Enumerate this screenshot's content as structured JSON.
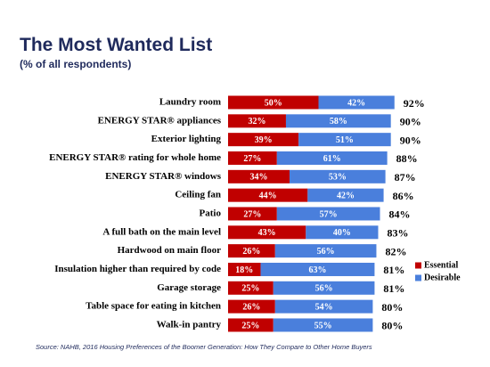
{
  "chart_data": {
    "type": "stacked-bar-horizontal",
    "title": "The Most Wanted List",
    "subtitle": "(% of all respondents)",
    "source": "Source: NAHB, 2016 Housing Preferences of the Boomer Generation: How They Compare to Other Home Buyers",
    "categories": [
      "Laundry room",
      "ENERGY STAR® appliances",
      "Exterior lighting",
      "ENERGY STAR® rating for whole home",
      "ENERGY STAR® windows",
      "Ceiling fan",
      "Patio",
      "A full bath on the main level",
      "Hardwood on  main floor",
      "Insulation higher than required by code",
      "Garage storage",
      "Table space for eating in kitchen",
      "Walk-in pantry"
    ],
    "series": [
      {
        "name": "Essential",
        "color": "#c00000",
        "values": [
          50,
          32,
          39,
          27,
          34,
          44,
          27,
          43,
          26,
          18,
          25,
          26,
          25
        ],
        "value_labels": [
          "50%",
          "32%",
          "39%",
          "27%",
          "34%",
          "44%",
          "27%",
          "43%",
          "26%",
          "18%",
          "25%",
          "26%",
          "25%"
        ]
      },
      {
        "name": "Desirable",
        "color": "#4a7fdc",
        "values": [
          42,
          58,
          51,
          61,
          53,
          42,
          57,
          40,
          56,
          63,
          56,
          54,
          55
        ],
        "value_labels": [
          "42%",
          "58%",
          "51%",
          "61%",
          "53%",
          "42%",
          "57%",
          "40%",
          "56%",
          "63%",
          "56%",
          "54%",
          "55%"
        ]
      }
    ],
    "totals": [
      92,
      90,
      90,
      88,
      87,
      86,
      84,
      83,
      82,
      81,
      81,
      80,
      80
    ],
    "total_labels": [
      "92%",
      "90%",
      "90%",
      "88%",
      "87%",
      "86%",
      "84%",
      "83%",
      "82%",
      "81%",
      "81%",
      "80%",
      "80%"
    ],
    "xlim": [
      0,
      100
    ],
    "legend": "right"
  }
}
